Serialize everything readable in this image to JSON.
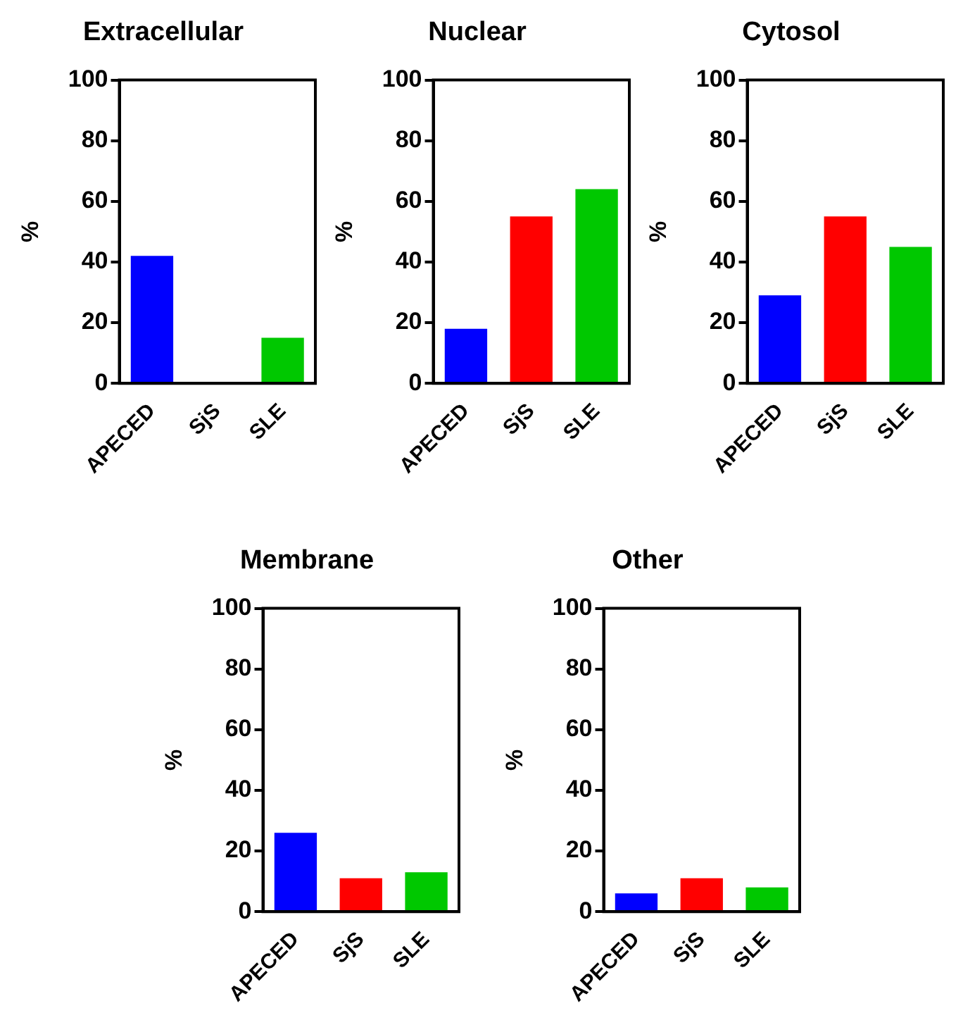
{
  "chart_data": [
    {
      "type": "bar",
      "title": "Extracellular",
      "ylabel": "%",
      "categories": [
        "APECED",
        "SjS",
        "SLE"
      ],
      "values": [
        42,
        0,
        15
      ],
      "colors": [
        "#0000ff",
        "#ff0000",
        "#00c800"
      ],
      "ylim": [
        0,
        100
      ],
      "yticks": [
        0,
        20,
        40,
        60,
        80,
        100
      ]
    },
    {
      "type": "bar",
      "title": "Nuclear",
      "ylabel": "%",
      "categories": [
        "APECED",
        "SjS",
        "SLE"
      ],
      "values": [
        18,
        55,
        64
      ],
      "colors": [
        "#0000ff",
        "#ff0000",
        "#00c800"
      ],
      "ylim": [
        0,
        100
      ],
      "yticks": [
        0,
        20,
        40,
        60,
        80,
        100
      ]
    },
    {
      "type": "bar",
      "title": "Cytosol",
      "ylabel": "%",
      "categories": [
        "APECED",
        "SjS",
        "SLE"
      ],
      "values": [
        29,
        55,
        45
      ],
      "colors": [
        "#0000ff",
        "#ff0000",
        "#00c800"
      ],
      "ylim": [
        0,
        100
      ],
      "yticks": [
        0,
        20,
        40,
        60,
        80,
        100
      ]
    },
    {
      "type": "bar",
      "title": "Membrane",
      "ylabel": "%",
      "categories": [
        "APECED",
        "SjS",
        "SLE"
      ],
      "values": [
        26,
        11,
        13
      ],
      "colors": [
        "#0000ff",
        "#ff0000",
        "#00c800"
      ],
      "ylim": [
        0,
        100
      ],
      "yticks": [
        0,
        20,
        40,
        60,
        80,
        100
      ]
    },
    {
      "type": "bar",
      "title": "Other",
      "ylabel": "%",
      "categories": [
        "APECED",
        "SjS",
        "SLE"
      ],
      "values": [
        6,
        11,
        8
      ],
      "colors": [
        "#0000ff",
        "#ff0000",
        "#00c800"
      ],
      "ylim": [
        0,
        100
      ],
      "yticks": [
        0,
        20,
        40,
        60,
        80,
        100
      ]
    }
  ]
}
